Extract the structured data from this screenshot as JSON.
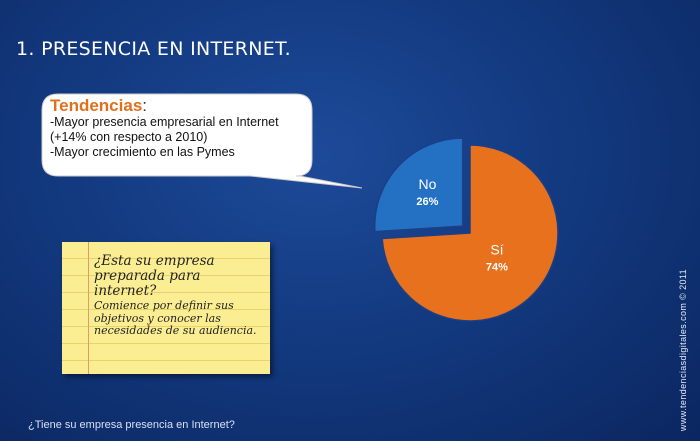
{
  "slide": {
    "title": "1. PRESENCIA EN INTERNET.",
    "question": "¿Tiene su empresa presencia en Internet?",
    "credit": "www.tendenciasdigitales.com © 2011"
  },
  "callout": {
    "heading": "Tendencias",
    "colon": ":",
    "lines": [
      "-Mayor presencia empresarial en Internet",
      "(+14% con respecto a 2010)",
      "-Mayor crecimiento en las Pymes"
    ]
  },
  "note": {
    "question": "¿Esta su empresa preparada para internet?",
    "body": "Comience por definir sus objetivos y conocer las necesidades de su audiencia."
  },
  "chart_data": {
    "type": "pie",
    "slices": [
      {
        "label": "Sí",
        "value": 74,
        "value_label": "74%",
        "color": "#e8711d"
      },
      {
        "label": "No",
        "value": 26,
        "value_label": "26%",
        "color": "#2471c4"
      }
    ],
    "exploded": "No"
  },
  "colors": {
    "background": "#133a80",
    "accent_orange": "#e8711d",
    "accent_blue": "#2471c4"
  }
}
